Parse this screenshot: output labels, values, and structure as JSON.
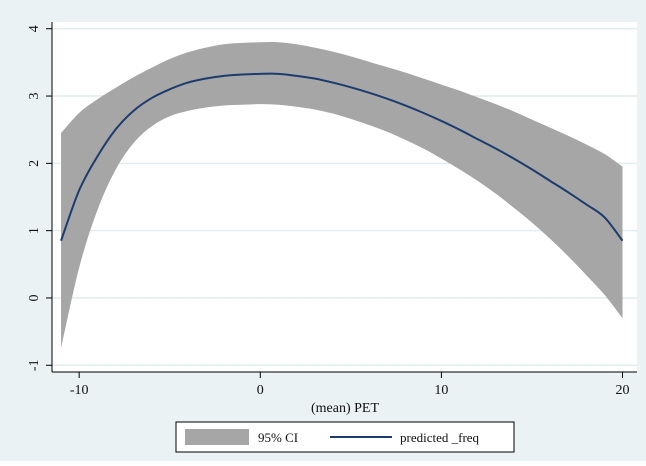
{
  "chart_data": {
    "type": "line",
    "title": "",
    "xlabel": "(mean) PET",
    "ylabel": "",
    "xlim": [
      -11.5,
      20.8
    ],
    "ylim": [
      -1.1,
      4.1
    ],
    "xticks": [
      -10,
      0,
      10,
      20
    ],
    "yticks": [
      -1,
      0,
      1,
      2,
      3,
      4
    ],
    "grid": true,
    "legend_position": "bottom",
    "colors": {
      "background": "#eaf2f3",
      "plot_area": "#ffffff",
      "ci_band": "#a6a6a6",
      "line": "#1c3c6e",
      "grid": "#e3ecee"
    },
    "x": [
      -11,
      -10,
      -9,
      -8,
      -7,
      -6,
      -5,
      -4,
      -3,
      -2,
      -1,
      0,
      1,
      2,
      3,
      4,
      5,
      6,
      7,
      8,
      9,
      10,
      11,
      12,
      13,
      14,
      15,
      16,
      17,
      18,
      19,
      20
    ],
    "series": [
      {
        "name": "predicted _freq",
        "type": "line",
        "values": [
          0.85,
          1.6,
          2.1,
          2.5,
          2.78,
          2.97,
          3.1,
          3.2,
          3.26,
          3.3,
          3.32,
          3.33,
          3.33,
          3.3,
          3.26,
          3.2,
          3.13,
          3.05,
          2.96,
          2.86,
          2.75,
          2.63,
          2.5,
          2.36,
          2.22,
          2.07,
          1.91,
          1.74,
          1.57,
          1.39,
          1.2,
          0.85
        ]
      },
      {
        "name": "95% CI",
        "type": "area",
        "lower": [
          -0.75,
          0.45,
          1.3,
          1.9,
          2.3,
          2.55,
          2.7,
          2.78,
          2.83,
          2.86,
          2.87,
          2.88,
          2.87,
          2.84,
          2.8,
          2.74,
          2.66,
          2.57,
          2.47,
          2.35,
          2.22,
          2.07,
          1.91,
          1.74,
          1.55,
          1.34,
          1.12,
          0.88,
          0.62,
          0.34,
          0.05,
          -0.3
        ],
        "upper": [
          2.45,
          2.75,
          2.95,
          3.12,
          3.28,
          3.42,
          3.55,
          3.65,
          3.72,
          3.77,
          3.79,
          3.8,
          3.8,
          3.77,
          3.72,
          3.66,
          3.59,
          3.51,
          3.43,
          3.35,
          3.26,
          3.17,
          3.08,
          2.98,
          2.88,
          2.77,
          2.65,
          2.53,
          2.41,
          2.28,
          2.14,
          1.95
        ]
      }
    ]
  }
}
